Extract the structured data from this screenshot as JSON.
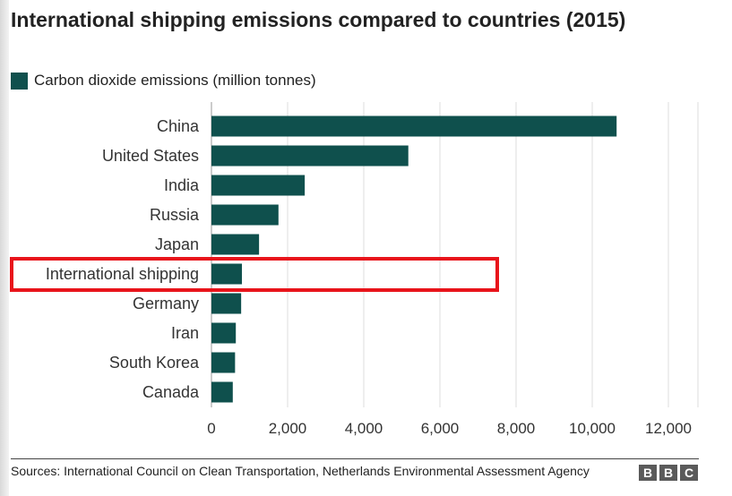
{
  "page": {
    "title": "International shipping emissions compared to countries (2015)",
    "source": "Sources: International Council on Clean Transportation, Netherlands Environmental Assessment Agency",
    "logo": [
      "B",
      "B",
      "C"
    ]
  },
  "chart_data": {
    "type": "bar",
    "orientation": "horizontal",
    "title": "International shipping emissions compared to countries (2015)",
    "categories": [
      "China",
      "United States",
      "India",
      "Russia",
      "Japan",
      "International shipping",
      "Germany",
      "Iran",
      "South Korea",
      "Canada"
    ],
    "series": [
      {
        "name": "Carbon dioxide emissions (million tonnes)",
        "color": "#0f504d",
        "values": [
          10640,
          5170,
          2450,
          1760,
          1250,
          800,
          780,
          640,
          620,
          560
        ]
      }
    ],
    "xlim": [
      0,
      12000
    ],
    "xticks": [
      0,
      2000,
      4000,
      6000,
      8000,
      10000,
      12000
    ],
    "xtick_labels": [
      "0",
      "2,000",
      "4,000",
      "6,000",
      "8,000",
      "10,000",
      "12,000"
    ],
    "grid": "vertical",
    "legend_position": "top-left",
    "highlight": {
      "category": "International shipping",
      "color": "#e8141b"
    }
  }
}
